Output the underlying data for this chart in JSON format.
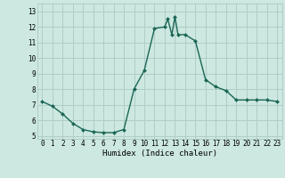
{
  "x": [
    0,
    1,
    2,
    3,
    4,
    5,
    6,
    7,
    8,
    9,
    10,
    11,
    12,
    12.3,
    12.7,
    13,
    13.3,
    14,
    15,
    16,
    17,
    18,
    19,
    20,
    21,
    22,
    23
  ],
  "y": [
    7.2,
    6.9,
    6.4,
    5.8,
    5.4,
    5.25,
    5.2,
    5.2,
    5.4,
    8.0,
    9.2,
    11.9,
    12.0,
    12.5,
    11.5,
    12.65,
    11.5,
    11.5,
    11.1,
    8.6,
    8.15,
    7.9,
    7.3,
    7.3,
    7.3,
    7.3,
    7.2
  ],
  "bg_color": "#cce8e0",
  "grid_color": "#b0cdc8",
  "line_color": "#1a6655",
  "marker": "D",
  "marker_size": 2.0,
  "line_width": 1.0,
  "xlabel": "Humidex (Indice chaleur)",
  "xlim": [
    -0.5,
    23.5
  ],
  "ylim": [
    4.8,
    13.5
  ],
  "yticks": [
    5,
    6,
    7,
    8,
    9,
    10,
    11,
    12,
    13
  ],
  "xticks": [
    0,
    1,
    2,
    3,
    4,
    5,
    6,
    7,
    8,
    9,
    10,
    11,
    12,
    13,
    14,
    15,
    16,
    17,
    18,
    19,
    20,
    21,
    22,
    23
  ],
  "axis_fontsize": 6.5,
  "tick_fontsize": 5.5
}
